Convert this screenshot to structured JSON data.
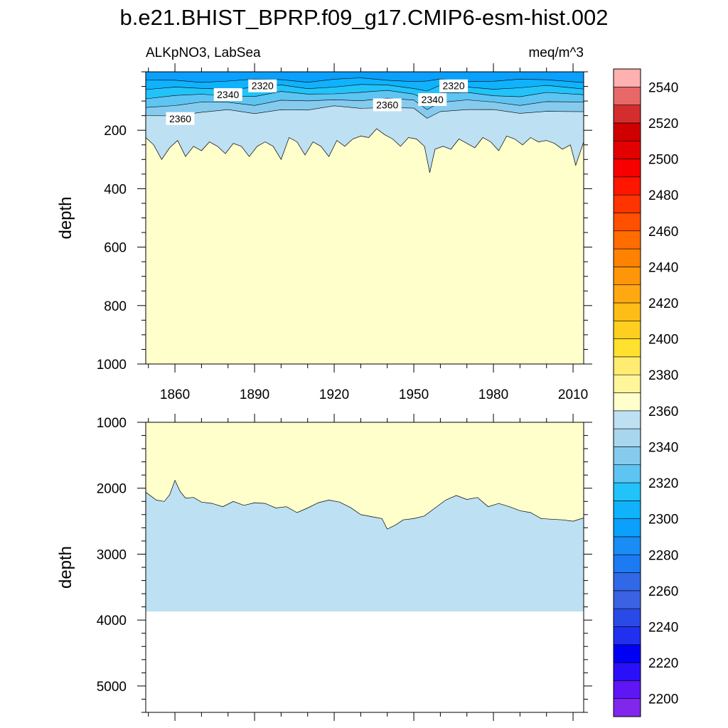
{
  "figure": {
    "title": "b.e21.BHIST_BPRP.f09_g17.CMIP6-esm-hist.002",
    "variable_label": "ALKpNO3, LabSea",
    "units_label": "meq/m^3"
  },
  "chart_data": [
    {
      "type": "heatmap",
      "panel": "upper",
      "ylabel": "depth",
      "xlim": [
        1849,
        2014
      ],
      "ylim": [
        0,
        1000
      ],
      "y_inverted": true,
      "x_ticks": [
        1860,
        1890,
        1920,
        1950,
        1980,
        2010
      ],
      "y_ticks": [
        200,
        400,
        600,
        800,
        1000
      ],
      "background_level": 2380,
      "contour_levels_shown": [
        2320,
        2340,
        2360
      ],
      "contour_labels": [
        {
          "text": "2360",
          "x": 1862,
          "y": 160
        },
        {
          "text": "2340",
          "x": 1880,
          "y": 78
        },
        {
          "text": "2320",
          "x": 1893,
          "y": 48
        },
        {
          "text": "2360",
          "x": 1940,
          "y": 113
        },
        {
          "text": "2340",
          "x": 1957,
          "y": 95
        },
        {
          "text": "2320",
          "x": 1965,
          "y": 48
        }
      ],
      "boundary_2380_depth": {
        "x": [
          1849,
          1852,
          1855,
          1858,
          1861,
          1864,
          1867,
          1870,
          1873,
          1876,
          1879,
          1882,
          1885,
          1888,
          1891,
          1894,
          1897,
          1900,
          1903,
          1906,
          1909,
          1912,
          1915,
          1918,
          1921,
          1924,
          1927,
          1930,
          1933,
          1936,
          1939,
          1942,
          1945,
          1948,
          1951,
          1954,
          1956,
          1958,
          1961,
          1964,
          1967,
          1970,
          1973,
          1976,
          1979,
          1982,
          1985,
          1988,
          1991,
          1994,
          1997,
          2000,
          2003,
          2006,
          2009,
          2011,
          2014
        ],
        "depth": [
          225,
          250,
          300,
          260,
          235,
          290,
          255,
          270,
          240,
          255,
          280,
          245,
          255,
          290,
          255,
          240,
          255,
          300,
          225,
          240,
          285,
          240,
          255,
          290,
          235,
          255,
          230,
          220,
          225,
          195,
          215,
          230,
          255,
          225,
          230,
          255,
          345,
          265,
          255,
          265,
          230,
          245,
          260,
          225,
          240,
          270,
          220,
          230,
          250,
          225,
          240,
          235,
          245,
          265,
          250,
          320,
          240
        ]
      },
      "level_2360_depth": {
        "x": [
          1849,
          1860,
          1870,
          1880,
          1890,
          1900,
          1910,
          1920,
          1930,
          1940,
          1950,
          1955,
          1960,
          1970,
          1980,
          1990,
          2000,
          2014
        ],
        "depth": [
          150,
          145,
          140,
          135,
          140,
          125,
          135,
          120,
          120,
          120,
          130,
          160,
          130,
          130,
          135,
          140,
          130,
          140
        ]
      }
    },
    {
      "type": "heatmap",
      "panel": "lower",
      "ylabel": "depth",
      "xlim": [
        1849,
        2014
      ],
      "ylim": [
        1000,
        5400
      ],
      "y_inverted": true,
      "y_ticks": [
        1000,
        2000,
        3000,
        4000,
        5000
      ],
      "x_ticks": [
        1860,
        1890,
        1920,
        1950,
        1980,
        2010
      ],
      "region_2380_above_boundary": true,
      "region_2360_below_boundary": true,
      "bottom_depth": 3870,
      "boundary_depth": {
        "x": [
          1849,
          1853,
          1856,
          1858,
          1860,
          1862,
          1864,
          1867,
          1870,
          1874,
          1878,
          1882,
          1886,
          1890,
          1894,
          1898,
          1902,
          1906,
          1910,
          1914,
          1918,
          1922,
          1926,
          1930,
          1934,
          1938,
          1940,
          1943,
          1946,
          1950,
          1954,
          1958,
          1962,
          1966,
          1970,
          1974,
          1978,
          1982,
          1986,
          1990,
          1994,
          1998,
          2002,
          2006,
          2010,
          2014
        ],
        "depth": [
          2060,
          2180,
          2200,
          2100,
          1880,
          2050,
          2150,
          2140,
          2210,
          2230,
          2280,
          2200,
          2260,
          2220,
          2230,
          2300,
          2280,
          2370,
          2300,
          2220,
          2180,
          2210,
          2290,
          2400,
          2430,
          2460,
          2620,
          2560,
          2480,
          2460,
          2420,
          2300,
          2180,
          2110,
          2170,
          2140,
          2280,
          2230,
          2280,
          2340,
          2370,
          2460,
          2470,
          2480,
          2500,
          2450
        ]
      }
    }
  ],
  "colorbar": {
    "tick_labels": [
      "2200",
      "2220",
      "2240",
      "2260",
      "2280",
      "2300",
      "2320",
      "2340",
      "2360",
      "2380",
      "2400",
      "2420",
      "2440",
      "2460",
      "2480",
      "2500",
      "2520",
      "2540"
    ],
    "colors": [
      "#8126ec",
      "#5e16f5",
      "#2a10f8",
      "#0000f5",
      "#2030ee",
      "#2a4ae8",
      "#3a62e2",
      "#3068e8",
      "#1c7af2",
      "#1a8cf6",
      "#0aa0fb",
      "#10b2fb",
      "#22c3f8",
      "#5ec4f2",
      "#86cbee",
      "#a8d6ee",
      "#bde0f2",
      "#ffffcc",
      "#fff59a",
      "#ffec70",
      "#ffe12e",
      "#ffcf20",
      "#ffbd18",
      "#ffa812",
      "#ff960a",
      "#ff8202",
      "#ff6c00",
      "#ff5000",
      "#ff3400",
      "#ff1600",
      "#f60000",
      "#e30000",
      "#cf0000",
      "#d42d2d",
      "#e86868",
      "#ffb0b0"
    ]
  }
}
